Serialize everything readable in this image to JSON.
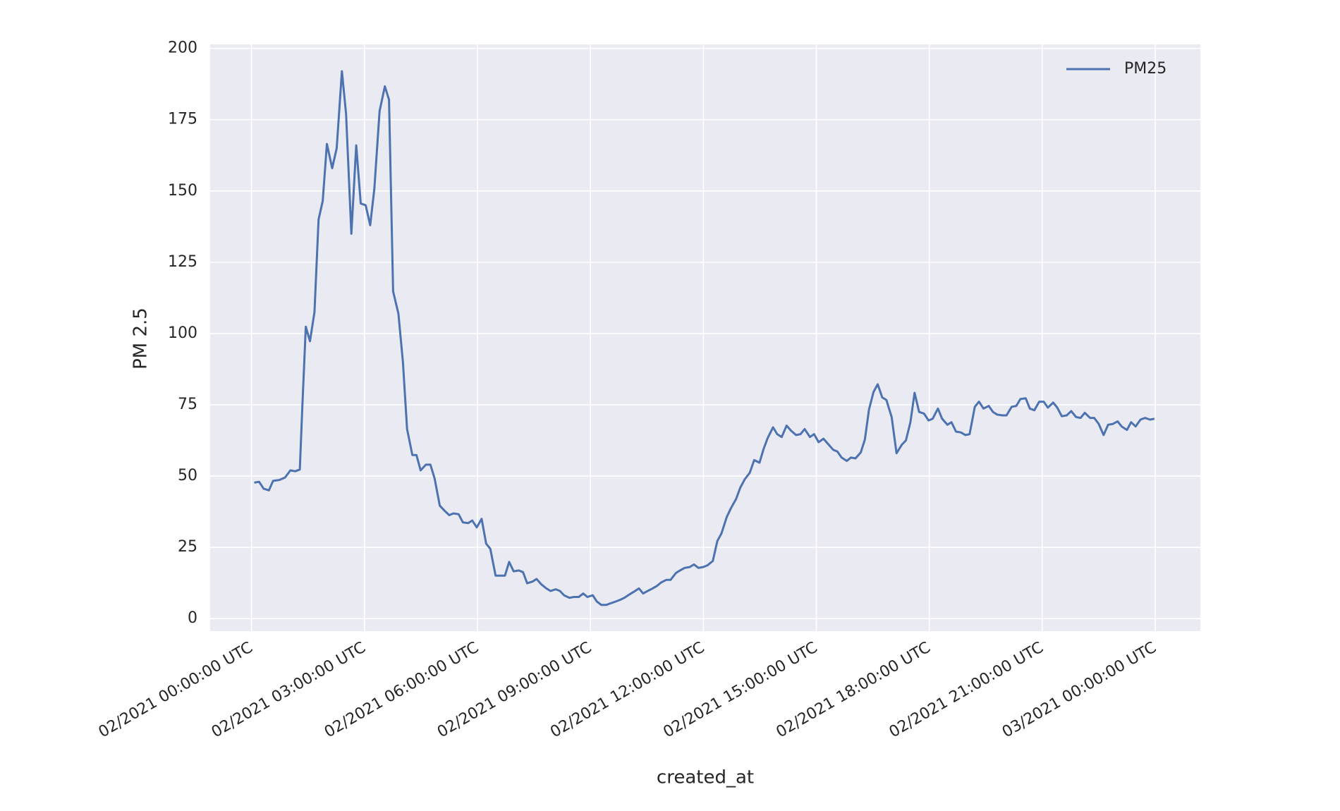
{
  "chart_data": {
    "type": "line",
    "xlabel": "created_at",
    "ylabel": "PM 2.5",
    "x": [
      0.07,
      0.2,
      0.32,
      0.46,
      0.57,
      0.73,
      0.89,
      1.03,
      1.16,
      1.28,
      1.35,
      1.44,
      1.55,
      1.67,
      1.78,
      1.89,
      2.0,
      2.14,
      2.26,
      2.4,
      2.51,
      2.65,
      2.78,
      2.9,
      3.03,
      3.15,
      3.26,
      3.4,
      3.54,
      3.65,
      3.76,
      3.9,
      4.02,
      4.13,
      4.27,
      4.38,
      4.49,
      4.63,
      4.75,
      4.86,
      5.0,
      5.13,
      5.25,
      5.36,
      5.5,
      5.61,
      5.75,
      5.86,
      5.98,
      6.11,
      6.23,
      6.34,
      6.48,
      6.59,
      6.73,
      6.84,
      6.96,
      7.1,
      7.21,
      7.32,
      7.46,
      7.57,
      7.69,
      7.83,
      7.94,
      8.08,
      8.19,
      8.3,
      8.44,
      8.56,
      8.69,
      8.81,
      8.92,
      9.06,
      9.17,
      9.29,
      9.42,
      9.54,
      9.67,
      9.79,
      9.9,
      10.04,
      10.15,
      10.29,
      10.4,
      10.52,
      10.65,
      10.77,
      10.88,
      11.02,
      11.13,
      11.27,
      11.38,
      11.5,
      11.64,
      11.75,
      11.87,
      12.0,
      12.11,
      12.25,
      12.37,
      12.48,
      12.62,
      12.73,
      12.87,
      12.98,
      13.1,
      13.23,
      13.35,
      13.49,
      13.6,
      13.71,
      13.85,
      13.96,
      14.08,
      14.21,
      14.33,
      14.46,
      14.58,
      14.69,
      14.83,
      14.94,
      15.06,
      15.19,
      15.31,
      15.45,
      15.56,
      15.67,
      15.81,
      15.92,
      16.04,
      16.18,
      16.29,
      16.4,
      16.52,
      16.63,
      16.75,
      16.86,
      17.0,
      17.13,
      17.27,
      17.38,
      17.5,
      17.61,
      17.73,
      17.86,
      17.98,
      18.09,
      18.23,
      18.34,
      18.48,
      18.59,
      18.71,
      18.84,
      18.96,
      19.07,
      19.21,
      19.32,
      19.44,
      19.58,
      19.69,
      19.8,
      19.94,
      20.05,
      20.19,
      20.31,
      20.42,
      20.56,
      20.67,
      20.79,
      20.92,
      21.04,
      21.15,
      21.29,
      21.4,
      21.52,
      21.65,
      21.77,
      21.9,
      22.02,
      22.13,
      22.27,
      22.38,
      22.5,
      22.63,
      22.75,
      22.88,
      23.0,
      23.11,
      23.25,
      23.36,
      23.48,
      23.61,
      23.73,
      23.86,
      23.98
    ],
    "series": [
      {
        "name": "PM25",
        "color": "#4c72b0",
        "values": [
          47.7,
          48,
          45.6,
          45,
          48.3,
          48.6,
          49.5,
          52,
          51.7,
          52.3,
          75,
          102.4,
          97.3,
          107.5,
          140,
          146.5,
          166.5,
          158,
          165,
          192,
          177,
          135,
          166,
          145.6,
          145,
          138,
          150.8,
          178,
          186.7,
          182,
          114.8,
          107,
          90,
          66.5,
          57.4,
          57.4,
          52,
          54,
          54,
          49.2,
          39.6,
          37.8,
          36.3,
          36.9,
          36.6,
          33.8,
          33.5,
          34.4,
          32,
          35,
          26.3,
          24.5,
          15.1,
          15.1,
          15.1,
          19.9,
          16.6,
          16.9,
          16.3,
          12.4,
          13,
          13.9,
          12.1,
          10.6,
          9.7,
          10.3,
          9.7,
          8.2,
          7.3,
          7.6,
          7.6,
          8.8,
          7.6,
          8.2,
          6.0,
          4.8,
          4.8,
          5.4,
          6.0,
          6.6,
          7.3,
          8.5,
          9.4,
          10.6,
          8.8,
          9.7,
          10.6,
          11.5,
          12.7,
          13.6,
          13.6,
          16,
          16.9,
          17.8,
          18.1,
          19,
          17.8,
          18.1,
          18.7,
          20.2,
          27.2,
          29.9,
          35.6,
          38.7,
          42,
          45.9,
          48.9,
          51.1,
          55.6,
          54.7,
          59.5,
          63.4,
          67.1,
          64.7,
          63.7,
          67.7,
          65.9,
          64.4,
          64.7,
          66.5,
          63.7,
          64.7,
          61.9,
          63.1,
          61.3,
          59.2,
          58.6,
          56.5,
          55.3,
          56.5,
          56.2,
          58.3,
          62.8,
          73.4,
          79.5,
          82.2,
          77.6,
          76.7,
          70.7,
          58,
          61,
          62.5,
          68.9,
          79.2,
          72.5,
          71.9,
          69.5,
          70.1,
          73.7,
          70.1,
          68,
          68.9,
          65.6,
          65.3,
          64.4,
          64.7,
          74.3,
          76.1,
          73.7,
          74.6,
          72.5,
          71.6,
          71.3,
          71.3,
          74.3,
          74.6,
          77,
          77.3,
          73.7,
          73.1,
          76.1,
          76.1,
          74,
          75.8,
          74,
          71,
          71.3,
          72.8,
          70.7,
          70.4,
          72.2,
          70.4,
          70.4,
          68.3,
          64.4,
          68,
          68.3,
          69.2,
          67.4,
          66.2,
          68.9,
          67.4,
          69.8,
          70.4,
          69.8,
          70.1
        ]
      }
    ],
    "xlim": [
      -1.1,
      25.2
    ],
    "ylim": [
      -4.4,
      201.4
    ],
    "xticks": [
      {
        "value": 0,
        "label": "02/2021 00:00:00 UTC"
      },
      {
        "value": 3,
        "label": "02/2021 03:00:00 UTC"
      },
      {
        "value": 6,
        "label": "02/2021 06:00:00 UTC"
      },
      {
        "value": 9,
        "label": "02/2021 09:00:00 UTC"
      },
      {
        "value": 12,
        "label": "02/2021 12:00:00 UTC"
      },
      {
        "value": 15,
        "label": "02/2021 15:00:00 UTC"
      },
      {
        "value": 18,
        "label": "02/2021 18:00:00 UTC"
      },
      {
        "value": 21,
        "label": "02/2021 21:00:00 UTC"
      },
      {
        "value": 24,
        "label": "03/2021 00:00:00 UTC"
      }
    ],
    "yticks": [
      0,
      25,
      50,
      75,
      100,
      125,
      150,
      175,
      200
    ],
    "grid": true,
    "legend": "upper right"
  }
}
